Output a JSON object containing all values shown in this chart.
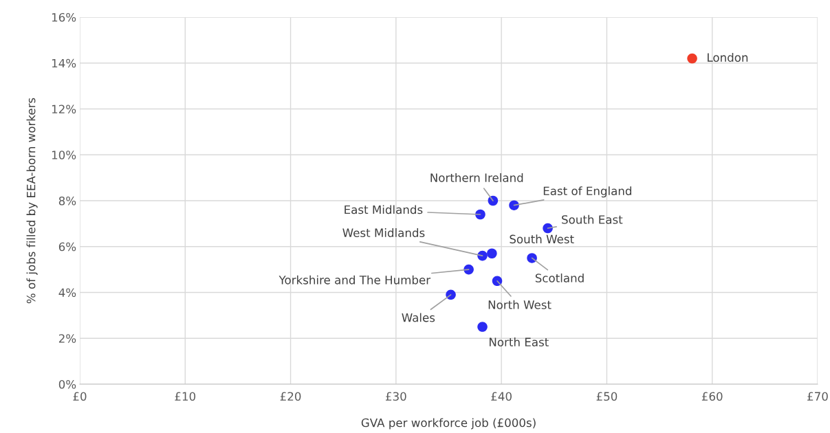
{
  "chart_data": {
    "type": "scatter",
    "xlabel": "GVA per workforce job (£000s)",
    "ylabel": "% of jobs filled by EEA-born workers",
    "x": [
      58.1,
      39.2,
      41.2,
      38.0,
      44.4,
      39.1,
      38.2,
      42.9,
      36.9,
      39.6,
      35.2,
      38.2
    ],
    "values": [
      14.2,
      8.0,
      7.8,
      7.4,
      6.8,
      5.7,
      5.6,
      5.5,
      5.0,
      4.5,
      3.9,
      2.5
    ],
    "colors": [
      "#f03c28",
      "#2b2bf2",
      "#2b2bf2",
      "#2b2bf2",
      "#2b2bf2",
      "#2b2bf2",
      "#2b2bf2",
      "#2b2bf2",
      "#2b2bf2",
      "#2b2bf2",
      "#2b2bf2",
      "#2b2bf2"
    ],
    "annotations": [
      {
        "text": "London",
        "x": 58.1,
        "y": 14.2
      },
      {
        "text": "Northern Ireland",
        "x": 39.2,
        "y": 8.0
      },
      {
        "text": "East of England",
        "x": 41.2,
        "y": 7.8
      },
      {
        "text": "East Midlands",
        "x": 38.0,
        "y": 7.4
      },
      {
        "text": "South East",
        "x": 44.4,
        "y": 6.8
      },
      {
        "text": "West Midlands",
        "x": 38.2,
        "y": 5.6
      },
      {
        "text": "South West",
        "x": 39.1,
        "y": 5.7
      },
      {
        "text": "Scotland",
        "x": 42.9,
        "y": 5.5
      },
      {
        "text": "Yorkshire and The Humber",
        "x": 36.9,
        "y": 5.0
      },
      {
        "text": "North West",
        "x": 39.6,
        "y": 4.5
      },
      {
        "text": "Wales",
        "x": 35.2,
        "y": 3.9
      },
      {
        "text": "North East",
        "x": 38.2,
        "y": 2.5
      }
    ],
    "xlim": [
      0,
      70
    ],
    "xticks": [
      {
        "value": 0,
        "label": "£0"
      },
      {
        "value": 10,
        "label": "£10"
      },
      {
        "value": 20,
        "label": "£20"
      },
      {
        "value": 30,
        "label": "£30"
      },
      {
        "value": 40,
        "label": "£40"
      },
      {
        "value": 50,
        "label": "£50"
      },
      {
        "value": 60,
        "label": "£60"
      },
      {
        "value": 70,
        "label": "£70"
      }
    ],
    "ylim": [
      0,
      16
    ],
    "yticks": [
      {
        "value": 0,
        "label": "0%"
      },
      {
        "value": 2,
        "label": "2%"
      },
      {
        "value": 4,
        "label": "4%"
      },
      {
        "value": 6,
        "label": "6%"
      },
      {
        "value": 8,
        "label": "8%"
      },
      {
        "value": 10,
        "label": "10%"
      },
      {
        "value": 12,
        "label": "12%"
      },
      {
        "value": 14,
        "label": "14%"
      },
      {
        "value": 16,
        "label": "16%"
      }
    ],
    "grid": true,
    "marker": "circle"
  }
}
